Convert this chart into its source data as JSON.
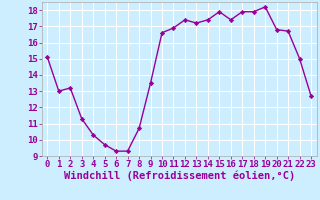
{
  "x": [
    0,
    1,
    2,
    3,
    4,
    5,
    6,
    7,
    8,
    9,
    10,
    11,
    12,
    13,
    14,
    15,
    16,
    17,
    18,
    19,
    20,
    21,
    22,
    23
  ],
  "y": [
    15.1,
    13.0,
    13.2,
    11.3,
    10.3,
    9.7,
    9.3,
    9.3,
    10.7,
    13.5,
    16.6,
    16.9,
    17.4,
    17.2,
    17.4,
    17.9,
    17.4,
    17.9,
    17.9,
    18.2,
    16.8,
    16.7,
    15.0,
    12.7
  ],
  "line_color": "#990099",
  "marker": "D",
  "marker_size": 2.2,
  "bg_color": "#cceeff",
  "grid_color": "#ffffff",
  "xlabel": "Windchill (Refroidissement éolien,°C)",
  "xlabel_fontsize": 7.5,
  "tick_fontsize": 6.5,
  "ylim": [
    9,
    18.5
  ],
  "yticks": [
    9,
    10,
    11,
    12,
    13,
    14,
    15,
    16,
    17,
    18
  ],
  "xticks": [
    0,
    1,
    2,
    3,
    4,
    5,
    6,
    7,
    8,
    9,
    10,
    11,
    12,
    13,
    14,
    15,
    16,
    17,
    18,
    19,
    20,
    21,
    22,
    23
  ],
  "linewidth": 1.0
}
